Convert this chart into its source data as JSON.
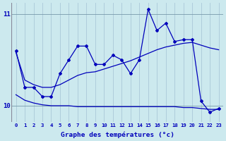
{
  "xlabel": "Graphe des températures (°c)",
  "bg_color": "#cce9ee",
  "plot_bg_color": "#cce9ee",
  "line_color": "#0000bb",
  "grid_color": "#aac8d8",
  "ylim": [
    9.82,
    11.12
  ],
  "xlim": [
    -0.5,
    23.5
  ],
  "yticks": [
    10,
    11
  ],
  "xticks": [
    0,
    1,
    2,
    3,
    4,
    5,
    6,
    7,
    8,
    9,
    10,
    11,
    12,
    13,
    14,
    15,
    16,
    17,
    18,
    19,
    20,
    21,
    22,
    23
  ],
  "main_y": [
    10.6,
    10.2,
    10.2,
    10.1,
    10.1,
    10.35,
    10.5,
    10.65,
    10.65,
    10.45,
    10.45,
    10.55,
    10.5,
    10.35,
    10.5,
    11.05,
    10.82,
    10.9,
    10.7,
    10.72,
    10.72,
    10.05,
    9.93,
    9.97
  ],
  "trend1_y": [
    10.58,
    10.28,
    10.23,
    10.2,
    10.2,
    10.23,
    10.28,
    10.33,
    10.36,
    10.37,
    10.4,
    10.43,
    10.46,
    10.49,
    10.53,
    10.57,
    10.61,
    10.64,
    10.66,
    10.68,
    10.69,
    10.66,
    10.63,
    10.61
  ],
  "trend2_y": [
    10.12,
    10.06,
    10.03,
    10.01,
    10.0,
    10.0,
    10.0,
    9.99,
    9.99,
    9.99,
    9.99,
    9.99,
    9.99,
    9.99,
    9.99,
    9.99,
    9.99,
    9.99,
    9.99,
    9.98,
    9.98,
    9.97,
    9.96,
    9.96
  ]
}
